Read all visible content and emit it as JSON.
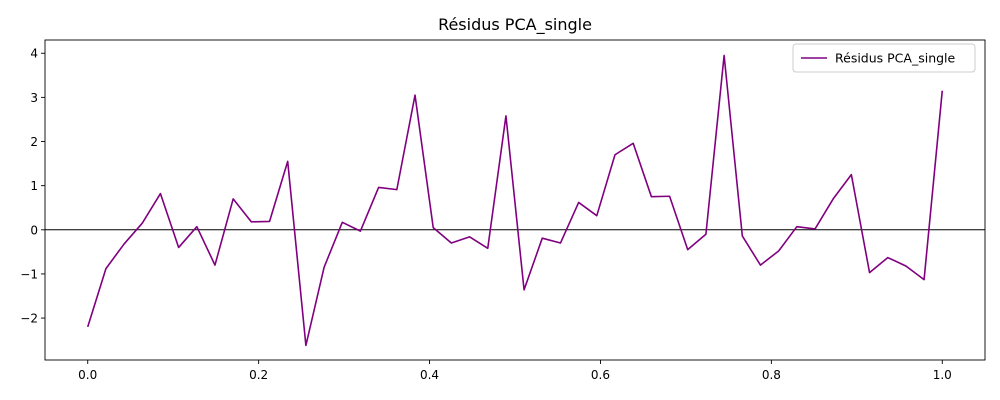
{
  "chart_data": {
    "type": "line",
    "title": "Résidus PCA_single",
    "xlabel": "",
    "ylabel": "",
    "xlim": [
      -0.05,
      1.05
    ],
    "ylim": [
      -2.95,
      4.3
    ],
    "xticks": [
      0.0,
      0.2,
      0.4,
      0.6,
      0.8,
      1.0
    ],
    "xtick_labels": [
      "0.0",
      "0.2",
      "0.4",
      "0.6",
      "0.8",
      "1.0"
    ],
    "yticks": [
      -2,
      -1,
      0,
      1,
      2,
      3,
      4
    ],
    "ytick_labels": [
      "−2",
      "−1",
      "0",
      "1",
      "2",
      "3",
      "4"
    ],
    "reference_line_y": 0,
    "grid": false,
    "legend_position": "top-right",
    "series": [
      {
        "name": "Résidus PCA_single",
        "color": "#800080",
        "x": [
          0.0,
          0.0213,
          0.0426,
          0.0638,
          0.0851,
          0.1064,
          0.1277,
          0.1489,
          0.1702,
          0.1915,
          0.2128,
          0.234,
          0.2553,
          0.2766,
          0.2979,
          0.3191,
          0.3404,
          0.3617,
          0.383,
          0.4043,
          0.4255,
          0.4468,
          0.4681,
          0.4894,
          0.5106,
          0.5319,
          0.5532,
          0.5745,
          0.5957,
          0.617,
          0.6383,
          0.6596,
          0.6809,
          0.7021,
          0.7234,
          0.7447,
          0.766,
          0.7872,
          0.8085,
          0.8298,
          0.8511,
          0.8723,
          0.8936,
          0.9149,
          0.9362,
          0.9574,
          0.9787,
          1.0
        ],
        "values": [
          -2.2,
          -0.88,
          -0.32,
          0.15,
          0.82,
          -0.4,
          0.07,
          -0.8,
          0.7,
          0.18,
          0.19,
          1.55,
          -2.62,
          -0.85,
          0.17,
          -0.03,
          0.96,
          0.91,
          3.05,
          0.05,
          -0.3,
          -0.16,
          -0.42,
          2.58,
          -1.36,
          -0.19,
          -0.3,
          0.62,
          0.32,
          1.7,
          1.96,
          0.75,
          0.76,
          -0.45,
          -0.1,
          3.95,
          -0.14,
          -0.8,
          -0.48,
          0.07,
          0.02,
          0.7,
          1.25,
          -0.97,
          -0.63,
          -0.82,
          -1.13,
          3.15
        ]
      }
    ]
  }
}
